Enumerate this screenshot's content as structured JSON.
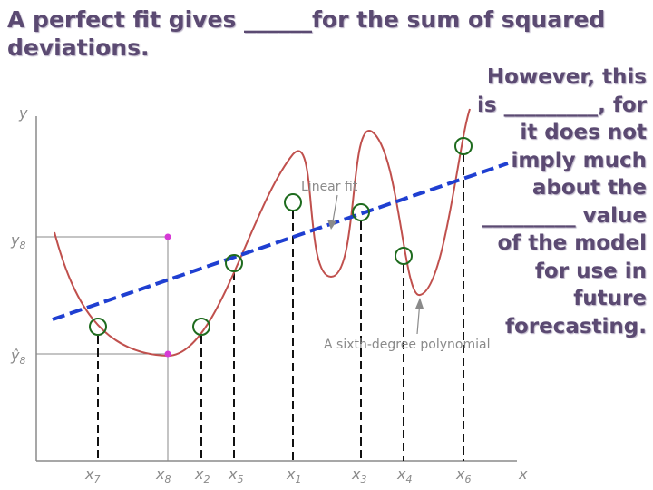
{
  "heading": {
    "text": "A perfect fit gives ______for the sum of squared deviations."
  },
  "side_text": {
    "text": "However, this is _________, for it does not imply much about the _________ value of the model for use in future forecasting."
  },
  "diagram": {
    "y_axis_label": "y",
    "x_axis_label": "x",
    "y8_label": "y",
    "y8_sub": "8",
    "yhat8_label": "ŷ",
    "yhat8_sub": "8",
    "x_ticks": [
      {
        "label": "x",
        "sub": "7"
      },
      {
        "label": "x",
        "sub": "8"
      },
      {
        "label": "x",
        "sub": "2"
      },
      {
        "label": "x",
        "sub": "5"
      },
      {
        "label": "x",
        "sub": "1"
      },
      {
        "label": "x",
        "sub": "3"
      },
      {
        "label": "x",
        "sub": "4"
      },
      {
        "label": "x",
        "sub": "6"
      }
    ],
    "linear_fit_label": "Linear fit",
    "polynomial_label": "A sixth-degree polynomial",
    "colors": {
      "curve": "#c0504d",
      "linear_fit": "#1f3fd1",
      "data_point": "#1e6b1e",
      "marker": "#d63ad6"
    }
  }
}
